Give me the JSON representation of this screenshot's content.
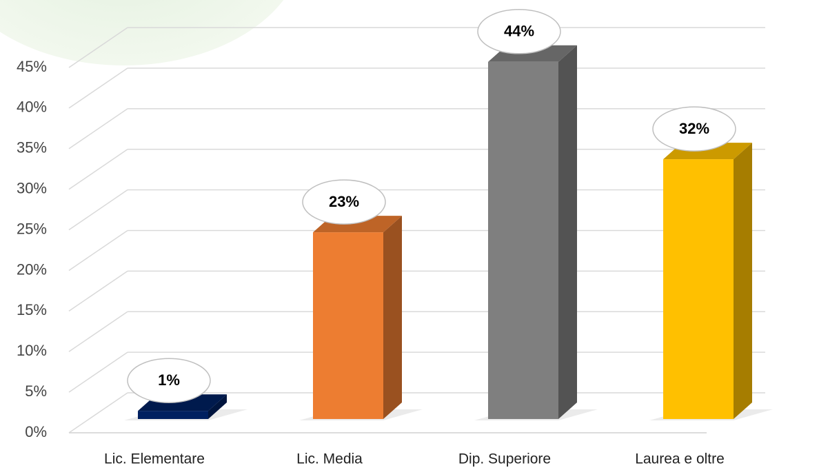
{
  "chart_data": {
    "type": "bar3d",
    "categories": [
      "Lic. Elementare",
      "Lic. Media",
      "Dip. Superiore",
      "Laurea e oltre"
    ],
    "values": [
      1,
      23,
      44,
      32
    ],
    "value_labels": [
      "1%",
      "23%",
      "44%",
      "32%"
    ],
    "colors": [
      "#002060",
      "#ED7D31",
      "#7F7F7F",
      "#FFC000"
    ],
    "ylim": [
      0,
      45
    ],
    "yticks": [
      {
        "value": 0,
        "label": "0%"
      },
      {
        "value": 5,
        "label": "5%"
      },
      {
        "value": 10,
        "label": "10%"
      },
      {
        "value": 15,
        "label": "15%"
      },
      {
        "value": 20,
        "label": "20%"
      },
      {
        "value": 25,
        "label": "25%"
      },
      {
        "value": 30,
        "label": "30%"
      },
      {
        "value": 35,
        "label": "35%"
      },
      {
        "value": 40,
        "label": "40%"
      },
      {
        "value": 45,
        "label": "45%"
      }
    ],
    "grid": true
  }
}
